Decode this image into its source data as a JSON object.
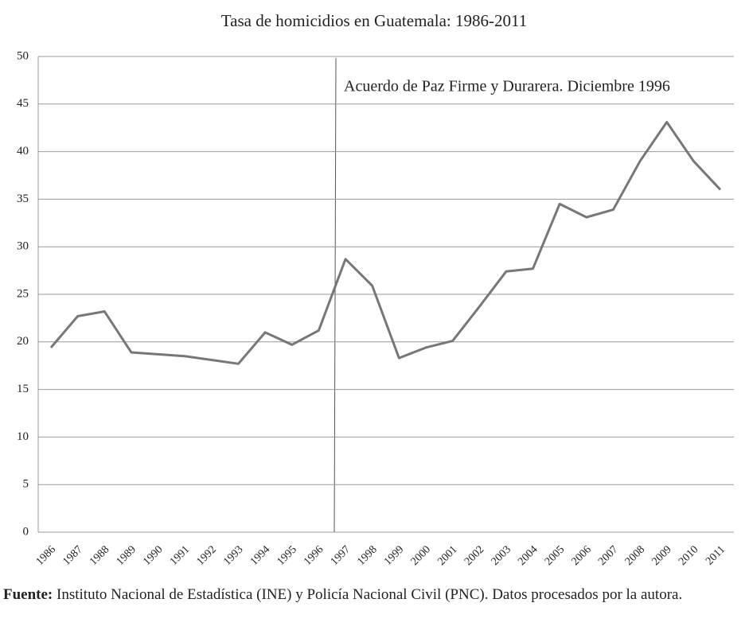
{
  "chart_data": {
    "type": "line",
    "title": "Tasa de homicidios en Guatemala: 1986-2011",
    "categories": [
      "1986",
      "1987",
      "1988",
      "1989",
      "1990",
      "1991",
      "1992",
      "1993",
      "1994",
      "1995",
      "1996",
      "1997",
      "1998",
      "1999",
      "2000",
      "2001",
      "2002",
      "2003",
      "2004",
      "2005",
      "2006",
      "2007",
      "2008",
      "2009",
      "2010",
      "2011"
    ],
    "series": [
      {
        "name": "Tasa de homicidios",
        "color": "#777777",
        "values": [
          19.4,
          22.7,
          23.2,
          18.9,
          18.7,
          18.5,
          18.1,
          17.7,
          21.0,
          19.7,
          21.2,
          28.7,
          25.9,
          18.3,
          19.4,
          20.1,
          23.7,
          27.4,
          27.7,
          34.5,
          33.1,
          33.9,
          39.0,
          43.1,
          39.0,
          36.0
        ]
      }
    ],
    "ylim": [
      0,
      50
    ],
    "yticks": [
      0,
      5,
      10,
      15,
      20,
      25,
      30,
      35,
      40,
      45,
      50
    ],
    "grid": true,
    "annotation": "Acuerdo de Paz Firme y Durarera. Diciembre 1996",
    "source_label": "Fuente:",
    "source_text": "Instituto Nacional de Estadística (INE) y Policía Nacional Civil (PNC). Datos procesados por la autora."
  }
}
